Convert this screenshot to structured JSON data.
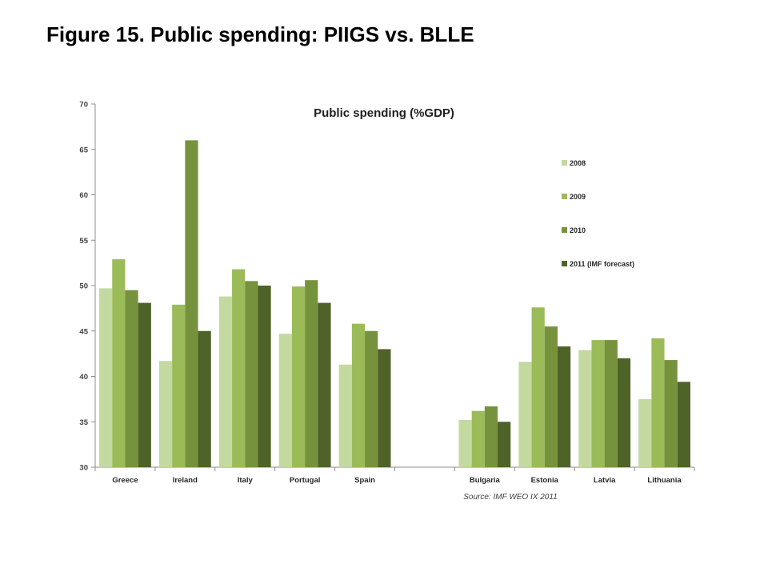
{
  "slide": {
    "title": "Figure 15. Public spending: PIIGS vs. BLLE"
  },
  "chart_data": {
    "type": "bar",
    "title": "Public spending (%GDP)",
    "source": "Source: IMF WEO IX 2011",
    "xlabel": "",
    "ylabel": "",
    "ylim": [
      30,
      70
    ],
    "yticks": [
      30,
      35,
      40,
      45,
      50,
      55,
      60,
      65,
      70
    ],
    "categories": [
      "Greece",
      "Ireland",
      "Italy",
      "Portugal",
      "Spain",
      "",
      "Bulgaria",
      "Estonia",
      "Latvia",
      "Lithuania"
    ],
    "legend_position": "right",
    "grid": false,
    "series": [
      {
        "name": "2008",
        "color": "#c4d9a0",
        "values": [
          49.7,
          41.7,
          48.8,
          44.7,
          41.3,
          null,
          35.2,
          41.6,
          42.9,
          37.5
        ]
      },
      {
        "name": "2009",
        "color": "#9bbb59",
        "values": [
          52.9,
          47.9,
          51.8,
          49.9,
          45.8,
          null,
          36.2,
          47.6,
          44.0,
          44.2
        ]
      },
      {
        "name": "2010",
        "color": "#76923c",
        "values": [
          49.5,
          66.0,
          50.5,
          50.6,
          45.0,
          null,
          36.7,
          45.5,
          44.0,
          41.8
        ]
      },
      {
        "name": "2011 (IMF forecast)",
        "color": "#4f6228",
        "values": [
          48.1,
          45.0,
          50.0,
          48.1,
          43.0,
          null,
          35.0,
          43.3,
          42.0,
          39.4
        ]
      }
    ]
  }
}
